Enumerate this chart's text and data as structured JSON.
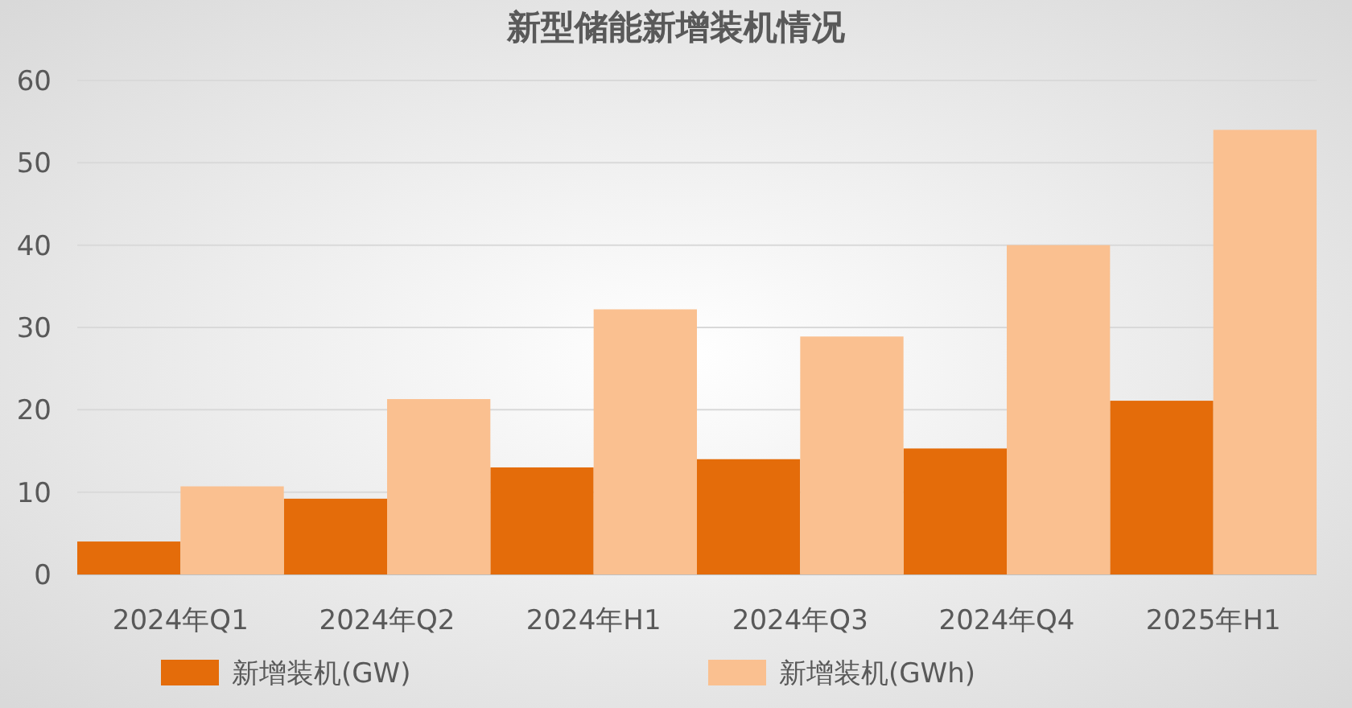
{
  "chart_data": {
    "type": "bar",
    "title": "新型储能新增装机情况",
    "categories": [
      "2024年Q1",
      "2024年Q2",
      "2024年H1",
      "2024年Q3",
      "2024年Q4",
      "2025年H1"
    ],
    "series": [
      {
        "name": "新增装机(GW)",
        "color": "#e46c0a",
        "values": [
          4.0,
          9.2,
          13.0,
          14.0,
          15.3,
          21.1
        ]
      },
      {
        "name": "新增装机(GWh)",
        "color": "#fac090",
        "values": [
          10.7,
          21.3,
          32.2,
          28.9,
          40.0,
          54.0
        ]
      }
    ],
    "ylim": [
      0,
      60
    ],
    "yticks": [
      0,
      10,
      20,
      30,
      40,
      50,
      60
    ],
    "grid": "y",
    "legend": "bottom"
  }
}
